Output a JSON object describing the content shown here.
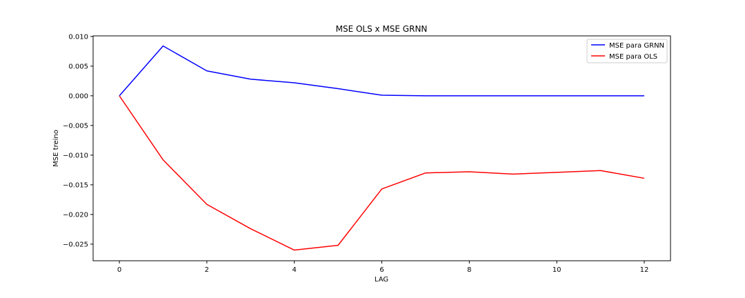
{
  "chart_data": {
    "type": "line",
    "title": "MSE OLS x MSE GRNN",
    "xlabel": "LAG",
    "ylabel": "MSE treino",
    "xlim": [
      -0.6,
      12.6
    ],
    "ylim": [
      -0.0278,
      0.0101
    ],
    "x_ticks": [
      0,
      2,
      4,
      6,
      8,
      10,
      12
    ],
    "y_ticks": [
      0.01,
      0.005,
      0.0,
      -0.005,
      -0.01,
      -0.015,
      -0.02,
      -0.025
    ],
    "y_tick_labels": [
      "0.010",
      "0.005",
      "0.000",
      "−0.005",
      "−0.010",
      "−0.015",
      "−0.020",
      "−0.025"
    ],
    "legend_position": "top-right",
    "grid": false,
    "x": [
      0,
      1,
      2,
      3,
      4,
      5,
      6,
      7,
      8,
      9,
      10,
      11,
      12
    ],
    "series": [
      {
        "name": "MSE para GRNN",
        "color": "#0000ff",
        "values": [
          0.0,
          0.0084,
          0.0042,
          0.0028,
          0.0022,
          0.0012,
          0.0001,
          0.0,
          0.0,
          0.0,
          0.0,
          0.0,
          0.0
        ]
      },
      {
        "name": "MSE para OLS",
        "color": "#ff0000",
        "values": [
          0.0,
          -0.0108,
          -0.0183,
          -0.0224,
          -0.026,
          -0.0252,
          -0.0157,
          -0.013,
          -0.0128,
          -0.0132,
          -0.0129,
          -0.0126,
          -0.0139
        ]
      }
    ]
  }
}
